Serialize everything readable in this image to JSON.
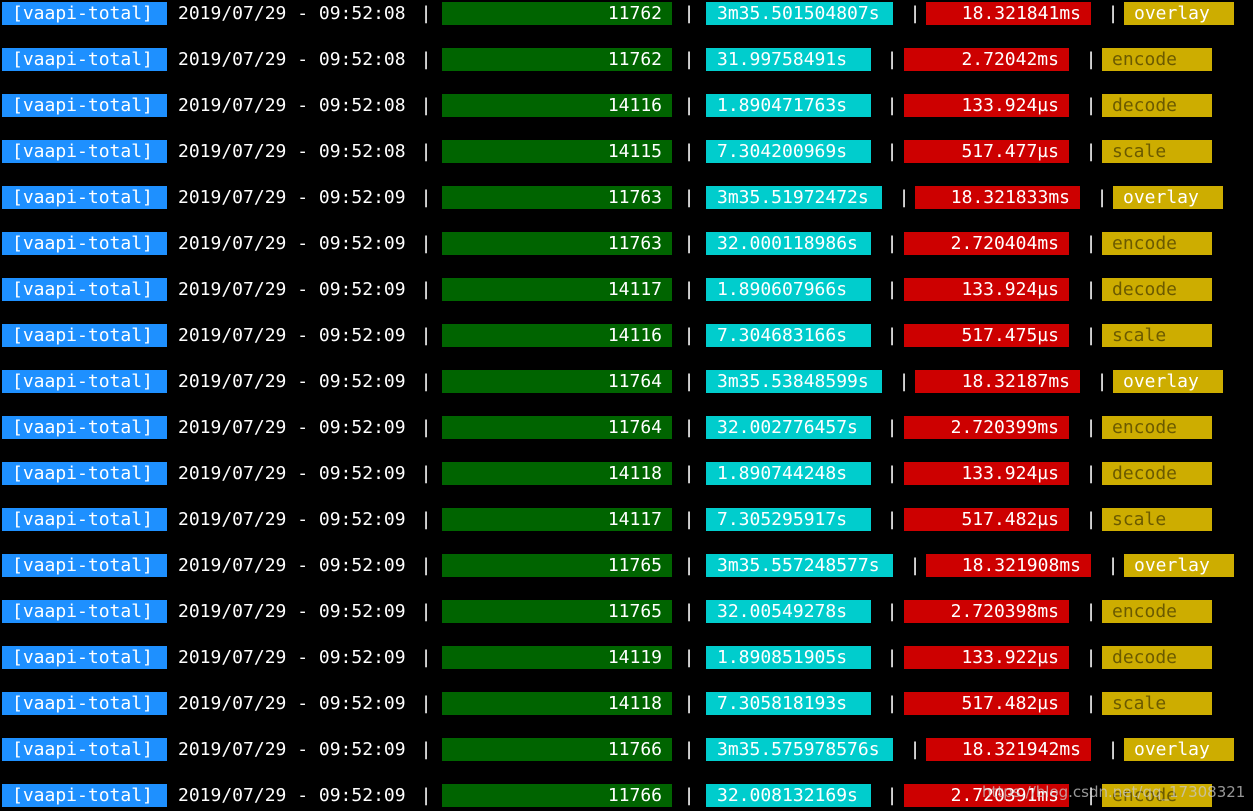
{
  "colors": {
    "background": "#000000",
    "tag_bg": "#1e90ff",
    "count_bg": "#006400",
    "duration_bg": "#00cdcd",
    "average_bg": "#cd0000",
    "name_bg": "#cdad00"
  },
  "separator": "|",
  "watermark": "https://blog.csdn.net/qq_17308321",
  "rows": [
    {
      "tag": "[vaapi-total]",
      "timestamp": "2019/07/29 - 09:52:08",
      "count": "11762",
      "duration": "3m35.501504807s",
      "average": "18.321841ms",
      "name": "overlay"
    },
    {
      "tag": "[vaapi-total]",
      "timestamp": "2019/07/29 - 09:52:08",
      "count": "11762",
      "duration": "31.99758491s",
      "average": "2.72042ms",
      "name": "encode"
    },
    {
      "tag": "[vaapi-total]",
      "timestamp": "2019/07/29 - 09:52:08",
      "count": "14116",
      "duration": "1.890471763s",
      "average": "133.924µs",
      "name": "decode"
    },
    {
      "tag": "[vaapi-total]",
      "timestamp": "2019/07/29 - 09:52:08",
      "count": "14115",
      "duration": "7.304200969s",
      "average": "517.477µs",
      "name": "scale"
    },
    {
      "tag": "[vaapi-total]",
      "timestamp": "2019/07/29 - 09:52:09",
      "count": "11763",
      "duration": "3m35.51972472s",
      "average": "18.321833ms",
      "name": "overlay"
    },
    {
      "tag": "[vaapi-total]",
      "timestamp": "2019/07/29 - 09:52:09",
      "count": "11763",
      "duration": "32.000118986s",
      "average": "2.720404ms",
      "name": "encode"
    },
    {
      "tag": "[vaapi-total]",
      "timestamp": "2019/07/29 - 09:52:09",
      "count": "14117",
      "duration": "1.890607966s",
      "average": "133.924µs",
      "name": "decode"
    },
    {
      "tag": "[vaapi-total]",
      "timestamp": "2019/07/29 - 09:52:09",
      "count": "14116",
      "duration": "7.304683166s",
      "average": "517.475µs",
      "name": "scale"
    },
    {
      "tag": "[vaapi-total]",
      "timestamp": "2019/07/29 - 09:52:09",
      "count": "11764",
      "duration": "3m35.53848599s",
      "average": "18.32187ms",
      "name": "overlay"
    },
    {
      "tag": "[vaapi-total]",
      "timestamp": "2019/07/29 - 09:52:09",
      "count": "11764",
      "duration": "32.002776457s",
      "average": "2.720399ms",
      "name": "encode"
    },
    {
      "tag": "[vaapi-total]",
      "timestamp": "2019/07/29 - 09:52:09",
      "count": "14118",
      "duration": "1.890744248s",
      "average": "133.924µs",
      "name": "decode"
    },
    {
      "tag": "[vaapi-total]",
      "timestamp": "2019/07/29 - 09:52:09",
      "count": "14117",
      "duration": "7.305295917s",
      "average": "517.482µs",
      "name": "scale"
    },
    {
      "tag": "[vaapi-total]",
      "timestamp": "2019/07/29 - 09:52:09",
      "count": "11765",
      "duration": "3m35.557248577s",
      "average": "18.321908ms",
      "name": "overlay"
    },
    {
      "tag": "[vaapi-total]",
      "timestamp": "2019/07/29 - 09:52:09",
      "count": "11765",
      "duration": "32.00549278s",
      "average": "2.720398ms",
      "name": "encode"
    },
    {
      "tag": "[vaapi-total]",
      "timestamp": "2019/07/29 - 09:52:09",
      "count": "14119",
      "duration": "1.890851905s",
      "average": "133.922µs",
      "name": "decode"
    },
    {
      "tag": "[vaapi-total]",
      "timestamp": "2019/07/29 - 09:52:09",
      "count": "14118",
      "duration": "7.305818193s",
      "average": "517.482µs",
      "name": "scale"
    },
    {
      "tag": "[vaapi-total]",
      "timestamp": "2019/07/29 - 09:52:09",
      "count": "11766",
      "duration": "3m35.575978576s",
      "average": "18.321942ms",
      "name": "overlay"
    },
    {
      "tag": "[vaapi-total]",
      "timestamp": "2019/07/29 - 09:52:09",
      "count": "11766",
      "duration": "32.008132169s",
      "average": "2.720391ms",
      "name": "encode"
    }
  ]
}
